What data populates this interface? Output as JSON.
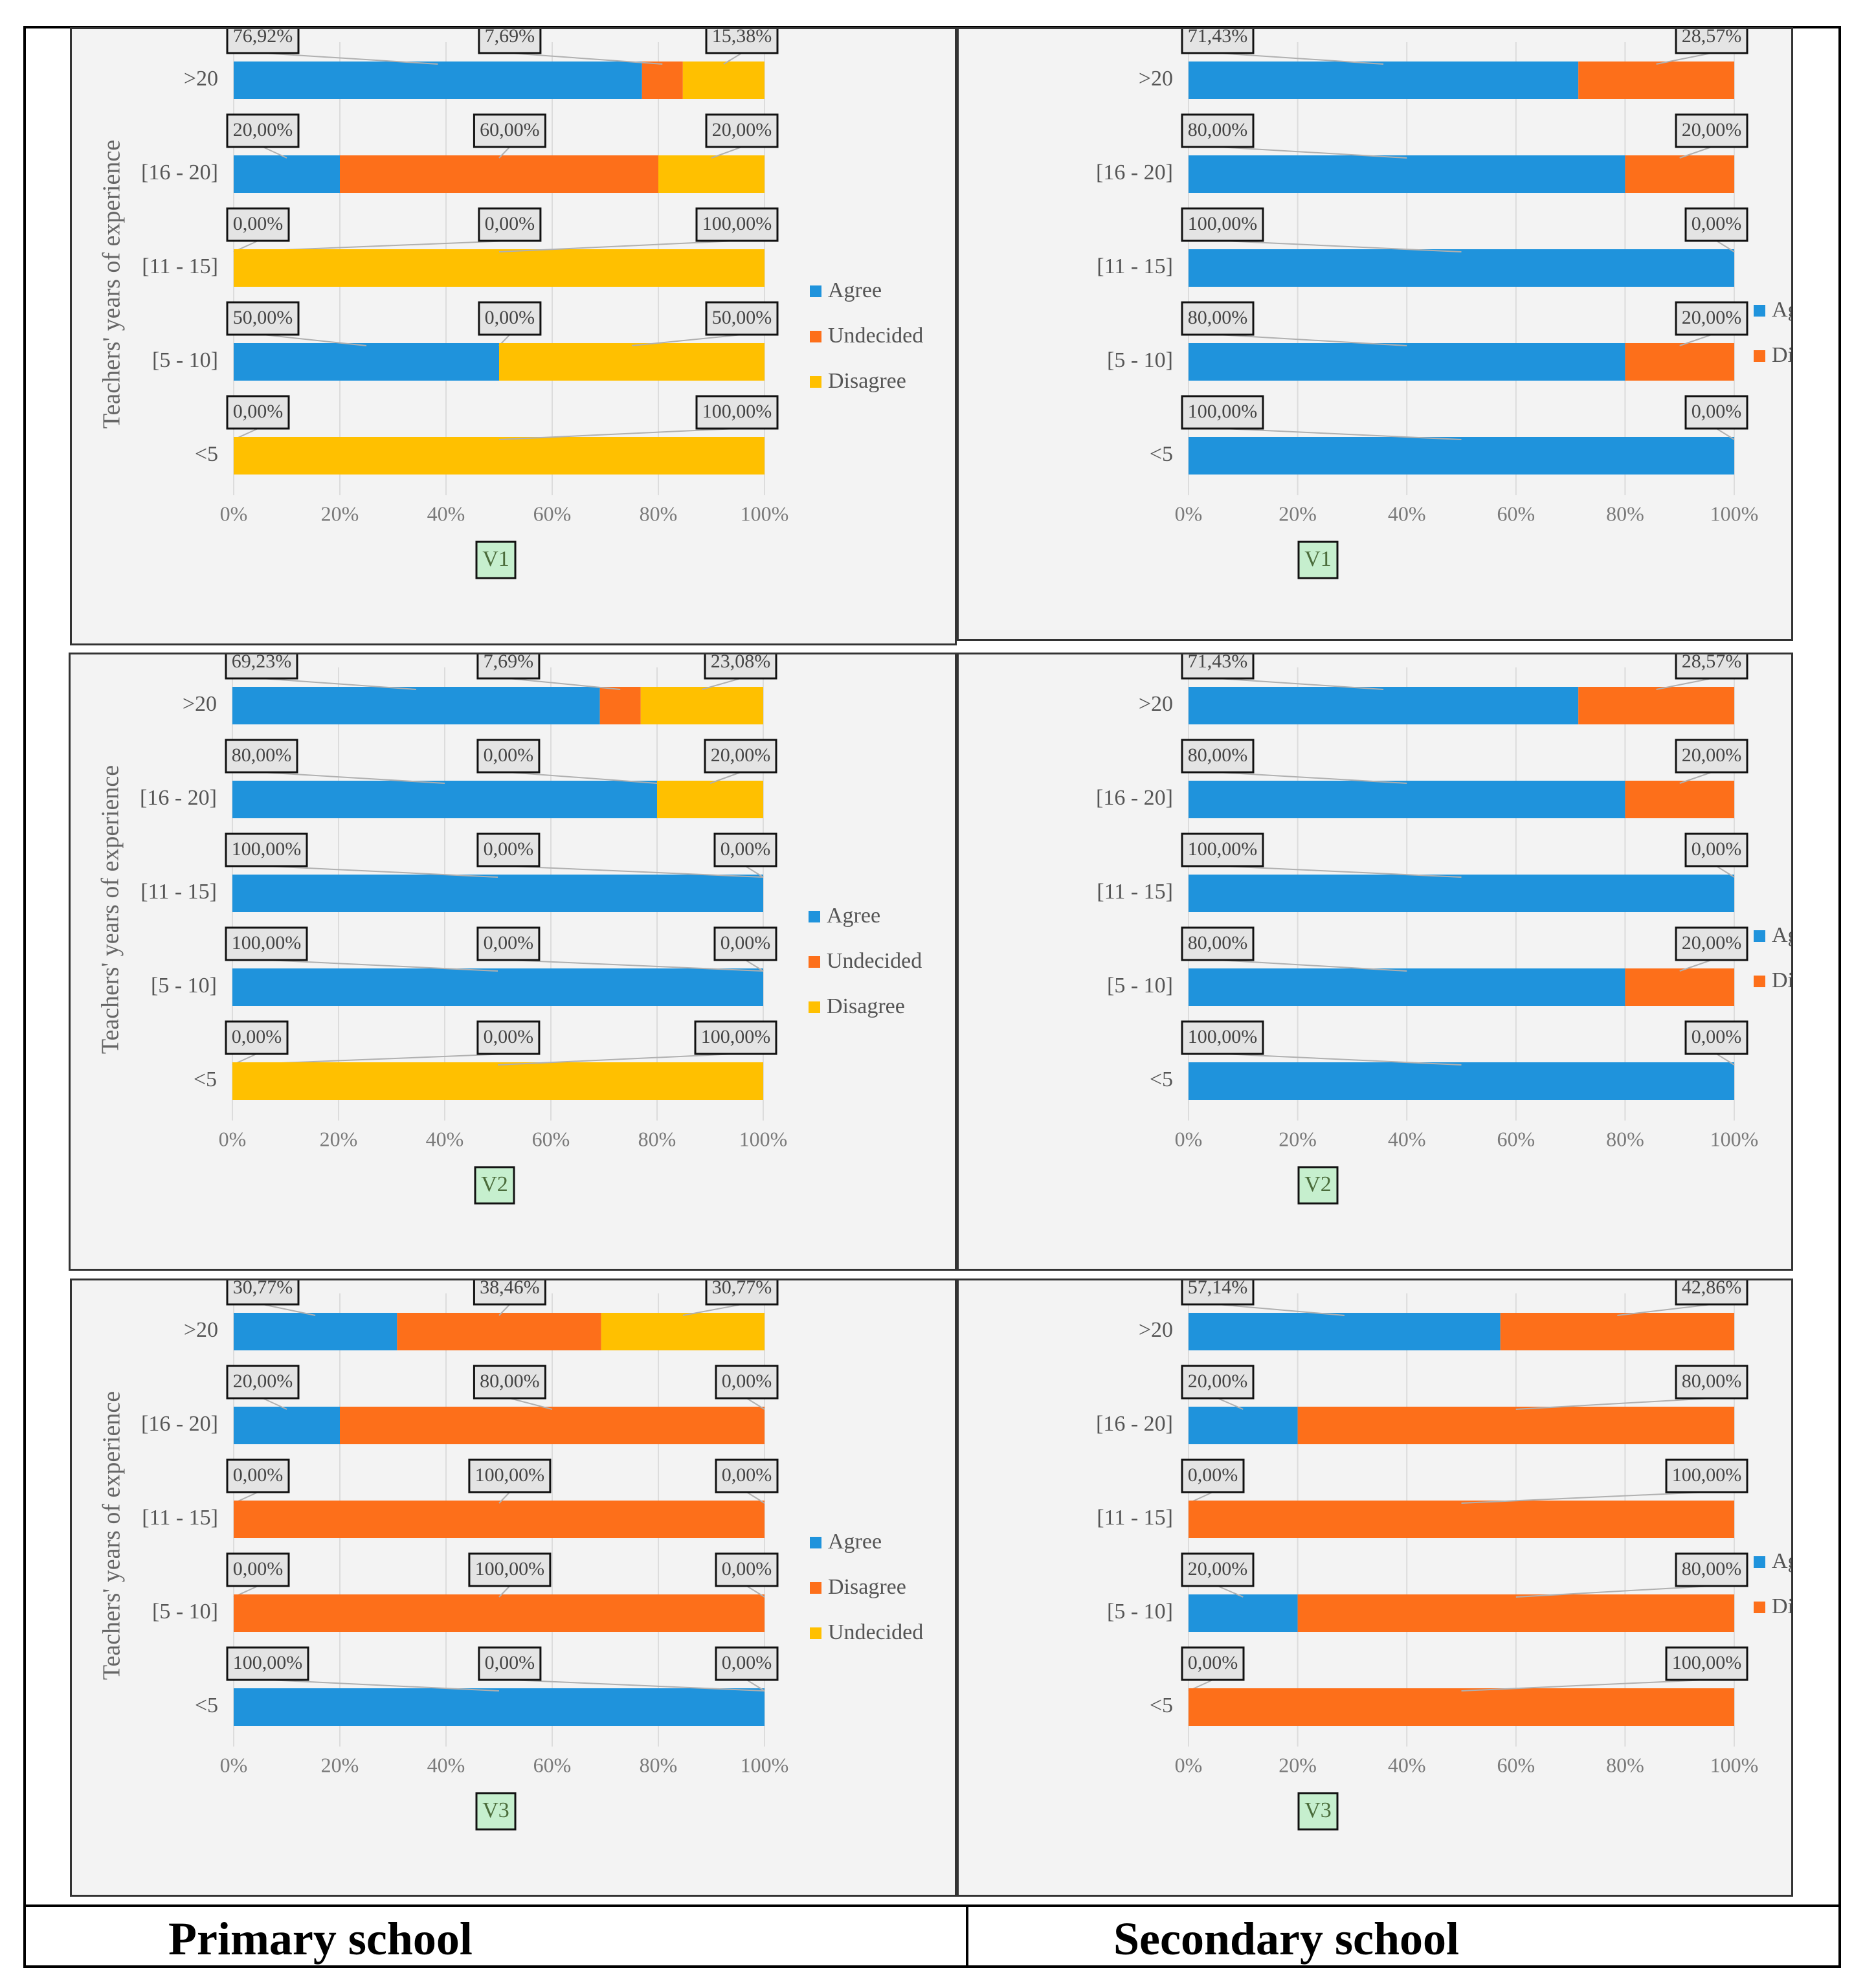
{
  "colors": {
    "agree": "#1f93dc",
    "undecided": "#fd6f1a",
    "disagree": "#ffc000"
  },
  "footer": {
    "primary": "Primary school",
    "secondary": "Secondary school"
  },
  "chart_data": [
    {
      "id": "p-v1",
      "school": "Primary school",
      "type": "bar",
      "stacked": true,
      "orientation": "horizontal",
      "title": "V1",
      "ylabel": "Teachers' years of experience",
      "xlim": [
        0,
        100
      ],
      "xticks": [
        "0%",
        "20%",
        "40%",
        "60%",
        "80%",
        "100%"
      ],
      "categories": [
        ">20",
        "[16 - 20]",
        "[11 - 15]",
        "[5 - 10]",
        "<5"
      ],
      "series": [
        {
          "name": "Agree",
          "color": "agree",
          "values": [
            76.92,
            20,
            0,
            50,
            0
          ],
          "labels": [
            "76,92%",
            "20,00%",
            "0,00%",
            "50,00%",
            "0,00%"
          ]
        },
        {
          "name": "Undecided",
          "color": "undecided",
          "values": [
            7.69,
            60,
            0,
            0,
            0
          ],
          "labels": [
            "7,69%",
            "60,00%",
            "0,00%",
            "0,00%",
            ""
          ]
        },
        {
          "name": "Disagree",
          "color": "disagree",
          "values": [
            15.38,
            20,
            100,
            50,
            100
          ],
          "labels": [
            "15,38%",
            "20,00%",
            "100,00%",
            "50,00%",
            "100,00%"
          ]
        }
      ]
    },
    {
      "id": "s-v1",
      "school": "Secondary school",
      "type": "bar",
      "stacked": true,
      "orientation": "horizontal",
      "title": "V1",
      "ylabel": "",
      "xlim": [
        0,
        100
      ],
      "xticks": [
        "0%",
        "20%",
        "40%",
        "60%",
        "80%",
        "100%"
      ],
      "categories": [
        ">20",
        "[16 - 20]",
        "[11 - 15]",
        "[5 - 10]",
        "<5"
      ],
      "series": [
        {
          "name": "Agree",
          "color": "agree",
          "values": [
            71.43,
            80,
            100,
            80,
            100
          ],
          "labels": [
            "71,43%",
            "80,00%",
            "100,00%",
            "80,00%",
            "100,00%"
          ]
        },
        {
          "name": "Disagree",
          "color": "undecided",
          "values": [
            28.57,
            20,
            0,
            20,
            0
          ],
          "labels": [
            "28,57%",
            "20,00%",
            "0,00%",
            "20,00%",
            "0,00%"
          ]
        }
      ]
    },
    {
      "id": "p-v2",
      "school": "Primary school",
      "type": "bar",
      "stacked": true,
      "orientation": "horizontal",
      "title": "V2",
      "ylabel": "Teachers' years of experience",
      "xlim": [
        0,
        100
      ],
      "xticks": [
        "0%",
        "20%",
        "40%",
        "60%",
        "80%",
        "100%"
      ],
      "categories": [
        ">20",
        "[16 - 20]",
        "[11 - 15]",
        "[5 - 10]",
        "<5"
      ],
      "series": [
        {
          "name": "Agree",
          "color": "agree",
          "values": [
            69.23,
            80,
            100,
            100,
            0
          ],
          "labels": [
            "69,23%",
            "80,00%",
            "100,00%",
            "100,00%",
            "0,00%"
          ]
        },
        {
          "name": "Undecided",
          "color": "undecided",
          "values": [
            7.69,
            0,
            0,
            0,
            0
          ],
          "labels": [
            "7,69%",
            "0,00%",
            "0,00%",
            "0,00%",
            "0,00%"
          ]
        },
        {
          "name": "Disagree",
          "color": "disagree",
          "values": [
            23.08,
            20,
            0,
            0,
            100
          ],
          "labels": [
            "23,08%",
            "20,00%",
            "0,00%",
            "0,00%",
            "100,00%"
          ]
        }
      ]
    },
    {
      "id": "s-v2",
      "school": "Secondary school",
      "type": "bar",
      "stacked": true,
      "orientation": "horizontal",
      "title": "V2",
      "ylabel": "",
      "xlim": [
        0,
        100
      ],
      "xticks": [
        "0%",
        "20%",
        "40%",
        "60%",
        "80%",
        "100%"
      ],
      "categories": [
        ">20",
        "[16 - 20]",
        "[11 - 15]",
        "[5 - 10]",
        "<5"
      ],
      "series": [
        {
          "name": "Agree",
          "color": "agree",
          "values": [
            71.43,
            80,
            100,
            80,
            100
          ],
          "labels": [
            "71,43%",
            "80,00%",
            "100,00%",
            "80,00%",
            "100,00%"
          ]
        },
        {
          "name": "Disagree",
          "color": "undecided",
          "values": [
            28.57,
            20,
            0,
            20,
            0
          ],
          "labels": [
            "28,57%",
            "20,00%",
            "0,00%",
            "20,00%",
            "0,00%"
          ]
        }
      ]
    },
    {
      "id": "p-v3",
      "school": "Primary school",
      "type": "bar",
      "stacked": true,
      "orientation": "horizontal",
      "title": "V3",
      "ylabel": "Teachers' years of experience",
      "xlim": [
        0,
        100
      ],
      "xticks": [
        "0%",
        "20%",
        "40%",
        "60%",
        "80%",
        "100%"
      ],
      "categories": [
        ">20",
        "[16 - 20]",
        "[11 - 15]",
        "[5 - 10]",
        "<5"
      ],
      "series": [
        {
          "name": "Agree",
          "color": "agree",
          "values": [
            30.77,
            20,
            0,
            0,
            100
          ],
          "labels": [
            "30,77%",
            "20,00%",
            "0,00%",
            "0,00%",
            "100,00%"
          ]
        },
        {
          "name": "Disagree",
          "color": "undecided",
          "values": [
            38.46,
            80,
            100,
            100,
            0
          ],
          "labels": [
            "38,46%",
            "80,00%",
            "100,00%",
            "100,00%",
            "0,00%"
          ]
        },
        {
          "name": "Undecided",
          "color": "disagree",
          "values": [
            30.77,
            0,
            0,
            0,
            0
          ],
          "labels": [
            "30,77%",
            "0,00%",
            "0,00%",
            "0,00%",
            "0,00%"
          ]
        }
      ]
    },
    {
      "id": "s-v3",
      "school": "Secondary school",
      "type": "bar",
      "stacked": true,
      "orientation": "horizontal",
      "title": "V3",
      "ylabel": "",
      "xlim": [
        0,
        100
      ],
      "xticks": [
        "0%",
        "20%",
        "40%",
        "60%",
        "80%",
        "100%"
      ],
      "categories": [
        ">20",
        "[16 - 20]",
        "[11 - 15]",
        "[5 - 10]",
        "<5"
      ],
      "series": [
        {
          "name": "Agree",
          "color": "agree",
          "values": [
            57.14,
            20,
            0,
            20,
            0
          ],
          "labels": [
            "57,14%",
            "20,00%",
            "0,00%",
            "20,00%",
            "0,00%"
          ]
        },
        {
          "name": "Disagree",
          "color": "undecided",
          "values": [
            42.86,
            80,
            100,
            80,
            100
          ],
          "labels": [
            "42,86%",
            "80,00%",
            "100,00%",
            "80,00%",
            "100,00%"
          ]
        }
      ]
    }
  ]
}
